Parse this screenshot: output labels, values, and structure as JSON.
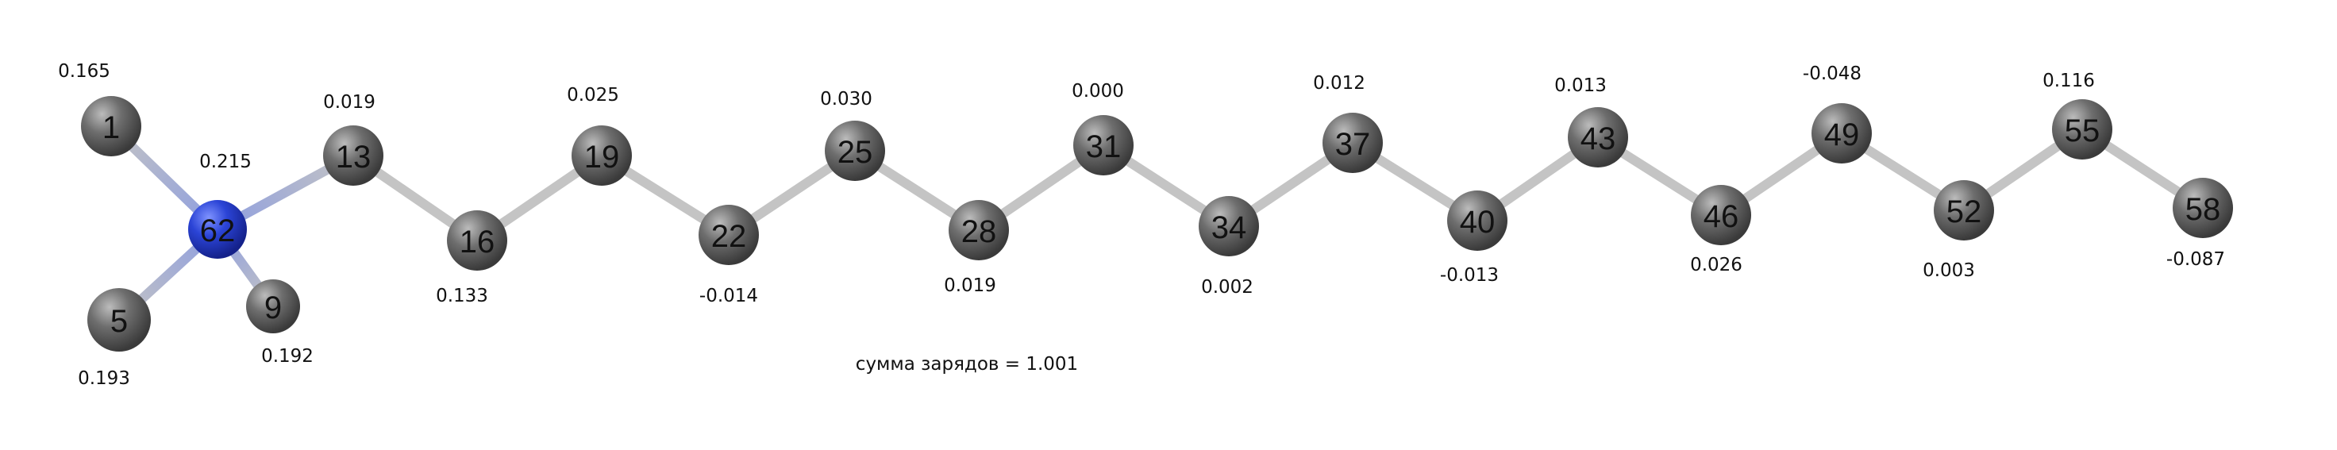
{
  "colors": {
    "carbon": "#6e6e6e",
    "nitrogen": "#2b44d6",
    "bond": "#c4c4c4",
    "bond_nitrogen": "#8e9ee0"
  },
  "atoms": [
    {
      "id": "1",
      "element": "C",
      "charge": "0.165"
    },
    {
      "id": "5",
      "element": "C",
      "charge": "0.193"
    },
    {
      "id": "9",
      "element": "C",
      "charge": "0.192"
    },
    {
      "id": "62",
      "element": "N",
      "charge": "0.215"
    },
    {
      "id": "13",
      "element": "C",
      "charge": "0.019"
    },
    {
      "id": "16",
      "element": "C",
      "charge": "0.133"
    },
    {
      "id": "19",
      "element": "C",
      "charge": "0.025"
    },
    {
      "id": "22",
      "element": "C",
      "charge": "-0.014"
    },
    {
      "id": "25",
      "element": "C",
      "charge": "0.030"
    },
    {
      "id": "28",
      "element": "C",
      "charge": "0.019"
    },
    {
      "id": "31",
      "element": "C",
      "charge": "0.000"
    },
    {
      "id": "34",
      "element": "C",
      "charge": "0.002"
    },
    {
      "id": "37",
      "element": "C",
      "charge": "0.012"
    },
    {
      "id": "40",
      "element": "C",
      "charge": "-0.013"
    },
    {
      "id": "43",
      "element": "C",
      "charge": "0.013"
    },
    {
      "id": "46",
      "element": "C",
      "charge": "0.026"
    },
    {
      "id": "49",
      "element": "C",
      "charge": "-0.048"
    },
    {
      "id": "52",
      "element": "C",
      "charge": "0.003"
    },
    {
      "id": "55",
      "element": "C",
      "charge": "0.116"
    },
    {
      "id": "58",
      "element": "C",
      "charge": "-0.087"
    }
  ],
  "bonds": [
    [
      "62",
      "1"
    ],
    [
      "62",
      "5"
    ],
    [
      "62",
      "9"
    ],
    [
      "62",
      "13"
    ],
    [
      "13",
      "16"
    ],
    [
      "16",
      "19"
    ],
    [
      "19",
      "22"
    ],
    [
      "22",
      "25"
    ],
    [
      "25",
      "28"
    ],
    [
      "28",
      "31"
    ],
    [
      "31",
      "34"
    ],
    [
      "34",
      "37"
    ],
    [
      "37",
      "40"
    ],
    [
      "40",
      "43"
    ],
    [
      "43",
      "46"
    ],
    [
      "46",
      "49"
    ],
    [
      "49",
      "52"
    ],
    [
      "52",
      "55"
    ],
    [
      "55",
      "58"
    ]
  ],
  "charge_sum": "сумма зарядов = 1.001"
}
